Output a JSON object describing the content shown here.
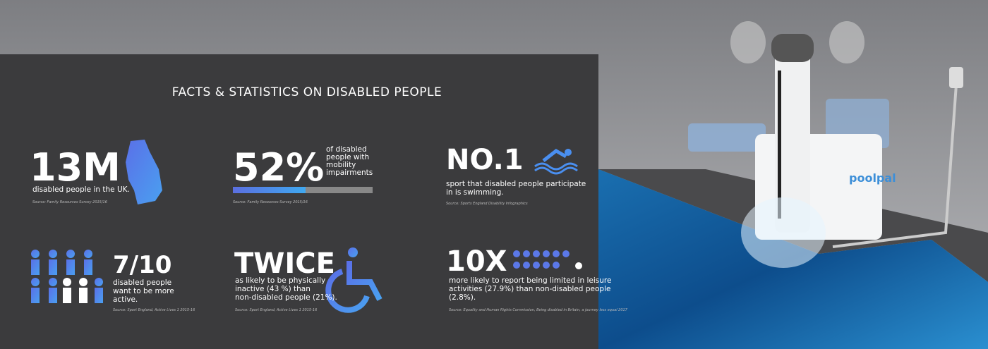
{
  "title": "FACTS & STATISTICS ON DISABLED PEOPLE",
  "facts": [
    {
      "figure": "13M",
      "lines": [
        "disabled people in the UK."
      ],
      "source": "Source: Family Resources Survey 2015/16"
    },
    {
      "figure": "52%",
      "side_lines": [
        "of disabled",
        "people with",
        "mobility",
        "impairments"
      ],
      "progress": 52,
      "source": "Source: Family Resources Survey 2015/16"
    },
    {
      "figure": "NO.1",
      "lines": [
        "sport that disabled people participate",
        "in is swimming."
      ],
      "source": "Source: Sports England Disability Infographics"
    },
    {
      "figure": "7/10",
      "lines": [
        "disabled people",
        "want to be more",
        "active."
      ],
      "source": "Source: Sport England, Active Lives 1 2015-16"
    },
    {
      "figure": "TWICE",
      "lines": [
        "as likely to be physically",
        "inactive (43 %) than",
        "non-disabled people (21%)."
      ],
      "source": "Source: Sport England, Active Lives 1 2015-16"
    },
    {
      "figure": "10X",
      "lines": [
        "more likely to report being limited in leisure",
        "activities (27.9%) than non-disabled people",
        "(2.8%)."
      ],
      "source": "Source: Equality and Human Rights Commission, Being disabled in Britain, a journey less equal 2017"
    }
  ],
  "product": {
    "brand": "poolpal"
  }
}
